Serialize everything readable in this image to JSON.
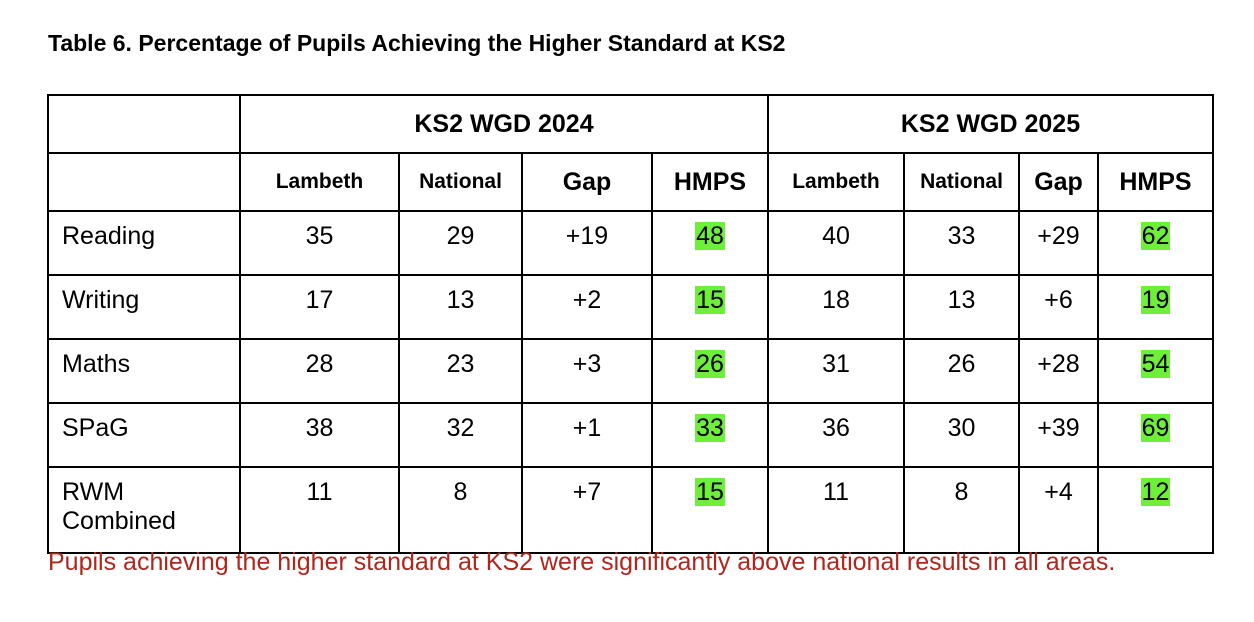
{
  "title": "Table 6. Percentage of Pupils Achieving the Higher Standard at KS2",
  "groups": [
    "KS2 WGD 2024",
    "KS2 WGD 2025"
  ],
  "columns": [
    "Lambeth",
    "National",
    "Gap",
    "HMPS",
    "Lambeth",
    "National",
    "Gap",
    "HMPS"
  ],
  "rows": [
    {
      "label": "Reading",
      "values": [
        "35",
        "29",
        "+19",
        "48",
        "40",
        "33",
        "+29",
        "62"
      ]
    },
    {
      "label": "Writing",
      "values": [
        "17",
        "13",
        "+2",
        "15",
        "18",
        "13",
        "+6",
        "19"
      ]
    },
    {
      "label": "Maths",
      "values": [
        "28",
        "23",
        "+3",
        "26",
        "31",
        "26",
        "+28",
        "54"
      ]
    },
    {
      "label": "SPaG",
      "values": [
        "38",
        "32",
        "+1",
        "33",
        "36",
        "30",
        "+39",
        "69"
      ]
    },
    {
      "label_line1": "RWM",
      "label_line2": "Combined",
      "values": [
        "11",
        "8",
        "+7",
        "15",
        "11",
        "8",
        "+4",
        "12"
      ]
    }
  ],
  "highlight_color": "#6ef03a",
  "note_color": "#b0261c",
  "note": "Pupils achieving the higher standard at KS2 were significantly above national results in all areas."
}
